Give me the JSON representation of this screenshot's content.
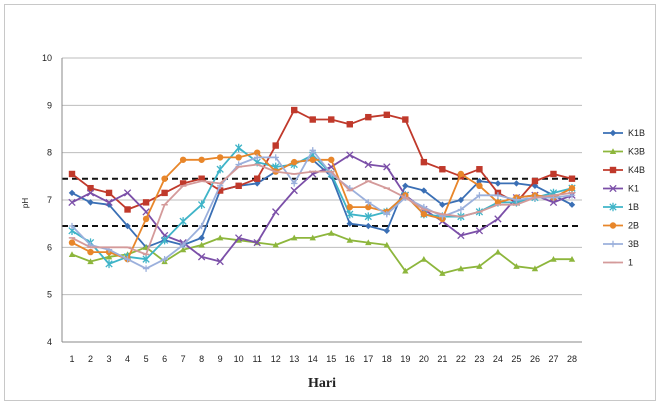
{
  "chart_data": {
    "type": "line",
    "title": "",
    "xlabel": "Hari",
    "ylabel": "pH",
    "x": [
      1,
      2,
      3,
      4,
      5,
      6,
      7,
      8,
      9,
      10,
      11,
      12,
      13,
      14,
      15,
      16,
      17,
      18,
      19,
      20,
      21,
      22,
      23,
      24,
      25,
      26,
      27,
      28
    ],
    "ylim": [
      4,
      10
    ],
    "yticks": [
      4,
      5,
      6,
      7,
      8,
      9,
      10
    ],
    "grid": true,
    "legend_position": "right",
    "reference_lines": [
      6.45,
      7.45
    ],
    "series": [
      {
        "name": "K1B",
        "color": "#3a6fb5",
        "marker": "diamond",
        "values": [
          7.15,
          6.95,
          6.9,
          6.45,
          6.0,
          6.15,
          6.05,
          6.2,
          7.2,
          7.3,
          7.35,
          7.6,
          7.8,
          7.85,
          7.5,
          6.5,
          6.45,
          6.35,
          7.3,
          7.2,
          6.9,
          7.0,
          7.4,
          7.35,
          7.35,
          7.3,
          7.1,
          6.9
        ]
      },
      {
        "name": "K3B",
        "color": "#8db63c",
        "marker": "triangle",
        "values": [
          5.85,
          5.7,
          5.8,
          5.85,
          6.0,
          5.7,
          5.95,
          6.05,
          6.2,
          6.15,
          6.1,
          6.05,
          6.2,
          6.2,
          6.3,
          6.15,
          6.1,
          6.05,
          5.5,
          5.75,
          5.45,
          5.55,
          5.6,
          5.9,
          5.6,
          5.55,
          5.75,
          5.75
        ]
      },
      {
        "name": "K4B",
        "color": "#c0392b",
        "marker": "square",
        "values": [
          7.55,
          7.25,
          7.15,
          6.8,
          6.95,
          7.15,
          7.35,
          7.45,
          7.2,
          7.3,
          7.45,
          8.15,
          8.9,
          8.7,
          8.7,
          8.6,
          8.75,
          8.8,
          8.7,
          7.8,
          7.65,
          7.5,
          7.65,
          7.15,
          6.95,
          7.4,
          7.55,
          7.45
        ]
      },
      {
        "name": "K1",
        "color": "#7b4fa8",
        "marker": "x",
        "values": [
          6.95,
          7.15,
          6.95,
          7.15,
          6.75,
          6.25,
          6.1,
          5.8,
          5.7,
          6.2,
          6.1,
          6.75,
          7.2,
          7.55,
          7.7,
          7.95,
          7.75,
          7.7,
          7.1,
          6.8,
          6.55,
          6.25,
          6.35,
          6.6,
          7.05,
          7.1,
          6.95,
          7.1
        ]
      },
      {
        "name": "1B",
        "color": "#3fb4c8",
        "marker": "star",
        "values": [
          6.35,
          6.1,
          5.65,
          5.8,
          5.75,
          6.15,
          6.55,
          6.9,
          7.65,
          8.1,
          7.8,
          7.7,
          7.75,
          7.95,
          7.55,
          6.7,
          6.65,
          6.75,
          7.1,
          6.7,
          6.65,
          6.65,
          6.75,
          6.95,
          6.95,
          7.05,
          7.15,
          7.25
        ]
      },
      {
        "name": "2B",
        "color": "#e8862a",
        "marker": "circle",
        "values": [
          6.1,
          5.9,
          5.9,
          5.75,
          6.6,
          7.45,
          7.85,
          7.85,
          7.9,
          7.9,
          8.0,
          7.6,
          7.8,
          7.85,
          7.85,
          6.85,
          6.85,
          6.75,
          7.1,
          6.7,
          6.6,
          7.55,
          7.3,
          6.95,
          7.05,
          7.1,
          7.05,
          7.25
        ]
      },
      {
        "name": "3B",
        "color": "#9bb0dc",
        "marker": "plus",
        "values": [
          6.45,
          6.05,
          5.95,
          5.75,
          5.55,
          5.75,
          6.05,
          6.45,
          7.3,
          7.75,
          7.9,
          7.9,
          7.35,
          8.05,
          7.55,
          7.25,
          6.95,
          6.7,
          7.05,
          6.85,
          6.65,
          6.8,
          7.1,
          7.1,
          7.0,
          7.05,
          7.05,
          7.1
        ]
      },
      {
        "name": "1",
        "color": "#d49a9a",
        "marker": "dash",
        "values": [
          6.2,
          6.0,
          6.0,
          6.0,
          5.85,
          6.9,
          7.3,
          7.4,
          7.35,
          7.7,
          7.75,
          7.6,
          7.55,
          7.6,
          7.6,
          7.2,
          7.4,
          7.25,
          7.05,
          6.8,
          6.7,
          6.65,
          6.75,
          6.9,
          6.9,
          7.05,
          7.1,
          7.15
        ]
      }
    ]
  }
}
